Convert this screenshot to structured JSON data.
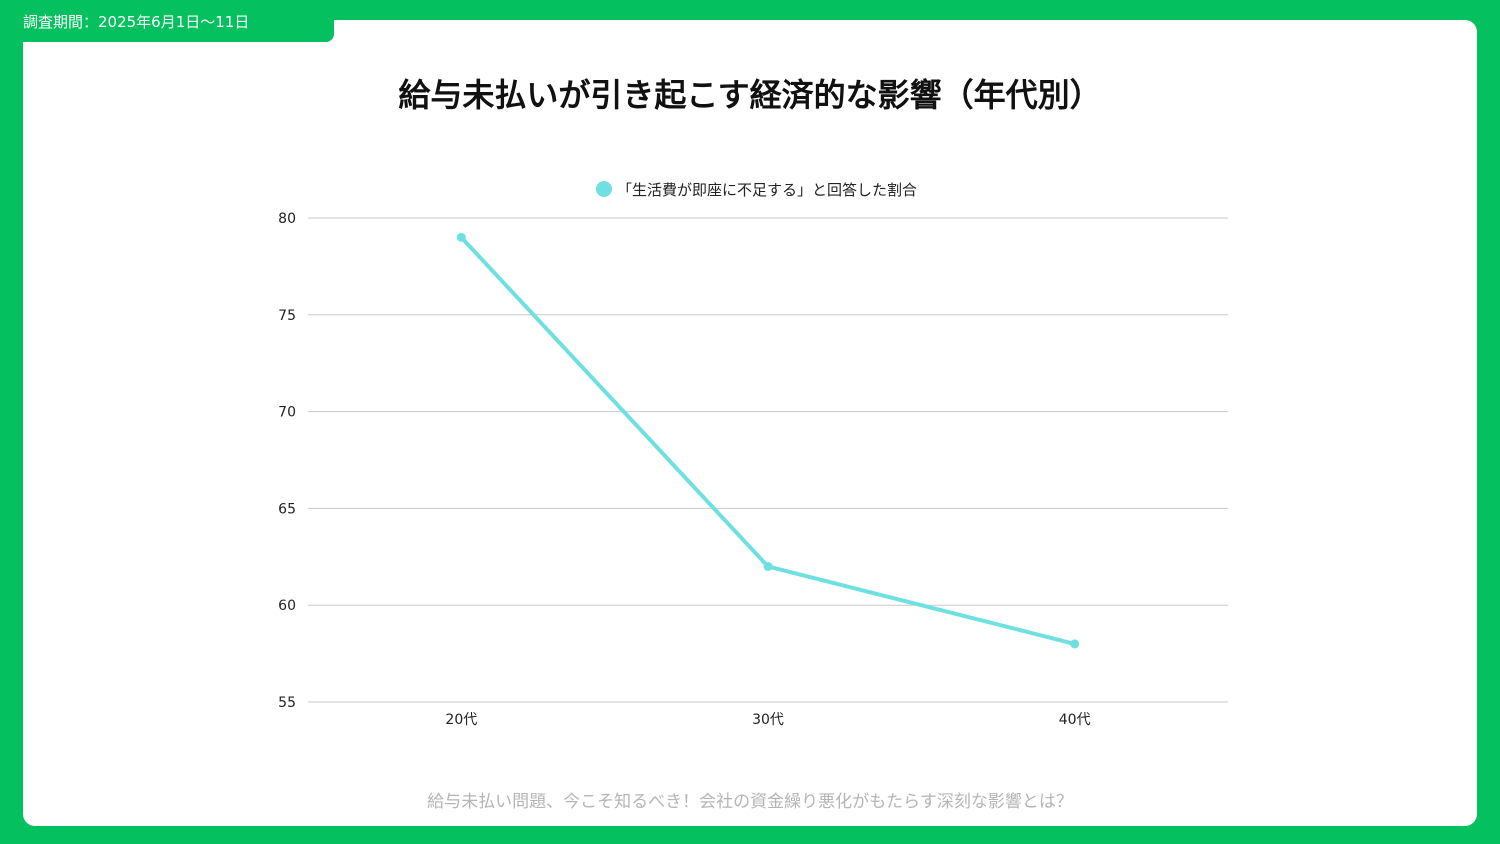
{
  "header": {
    "survey_period": "調査期間：2025年6月1日〜11日"
  },
  "footer": {
    "text": "給与未払い問題、今こそ知るべき！会社の資金繰り悪化がもたらす深刻な影響とは？"
  },
  "colors": {
    "frame": "#05c05f",
    "series": "#6ee0e0",
    "grid": "#c8c8c8"
  },
  "chart_data": {
    "type": "line",
    "title": "給与未払いが引き起こす経済的な影響（年代別）",
    "categories": [
      "20代",
      "30代",
      "40代"
    ],
    "series": [
      {
        "name": "「生活費が即座に不足する」と回答した割合",
        "values": [
          79,
          62,
          58
        ]
      }
    ],
    "ylim": [
      55,
      80
    ],
    "yticks": [
      80,
      75,
      70,
      65,
      60,
      55
    ],
    "grid": true,
    "legend": "top-center"
  }
}
